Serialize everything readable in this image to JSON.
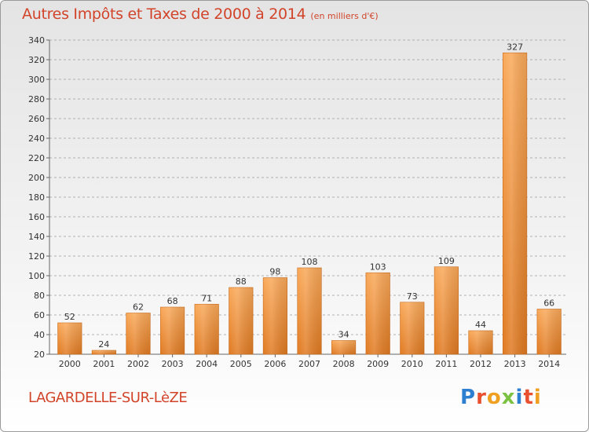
{
  "header": {
    "title": "Autres Impôts et Taxes de 2000 à 2014",
    "subtitle": "(en milliers d'€)"
  },
  "footer": {
    "commune": "LAGARDELLE-SUR-LèZE",
    "logo": {
      "text": "Proxiti",
      "letter_colors": [
        "#2f7fd0",
        "#e8502f",
        "#f0a020",
        "#7cc242",
        "#2f7fd0",
        "#e8502f",
        "#f0a020"
      ]
    }
  },
  "colors": {
    "bar_top": "#f9a95a",
    "bar_bottom": "#e07a22",
    "bar_edge": "#c96a1a",
    "title": "#d2442a",
    "grid": "#9c9c9c"
  },
  "chart_data": {
    "type": "bar",
    "categories": [
      "2000",
      "2001",
      "2002",
      "2003",
      "2004",
      "2005",
      "2006",
      "2007",
      "2008",
      "2009",
      "2010",
      "2011",
      "2012",
      "2013",
      "2014"
    ],
    "values": [
      52,
      24,
      62,
      68,
      71,
      88,
      98,
      108,
      34,
      103,
      73,
      109,
      44,
      327,
      66
    ],
    "data_labels": [
      "52",
      "24",
      "62",
      "68",
      "71",
      "88",
      "98",
      "108",
      "34",
      "103",
      "73",
      "109",
      "44",
      "327",
      "66"
    ],
    "title": "Autres Impôts et Taxes de 2000 à 2014",
    "subtitle": "(en milliers d'€)",
    "xlabel": "",
    "ylabel": "",
    "ylim": [
      20,
      340
    ],
    "yticks": [
      20,
      40,
      60,
      80,
      100,
      120,
      140,
      160,
      180,
      200,
      220,
      240,
      260,
      280,
      300,
      320,
      340
    ],
    "grid": "horizontal dashed",
    "legend": "none"
  }
}
